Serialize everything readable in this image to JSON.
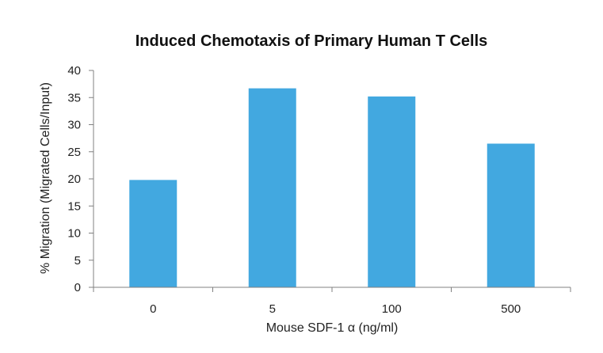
{
  "chart_data": {
    "type": "bar",
    "title": "Induced Chemotaxis of Primary Human T Cells",
    "xlabel": "Mouse SDF-1 α (ng/ml)",
    "ylabel": "% Migration (Migrated Cells/Input)",
    "categories": [
      "0",
      "5",
      "100",
      "500"
    ],
    "values": [
      19.8,
      36.7,
      35.2,
      26.5
    ],
    "ylim": [
      0,
      40
    ],
    "yticks": [
      0,
      5,
      10,
      15,
      20,
      25,
      30,
      35,
      40
    ],
    "grid": false,
    "legend": "none",
    "bar_color": "#42A8E0",
    "axis_color": "#808080"
  }
}
